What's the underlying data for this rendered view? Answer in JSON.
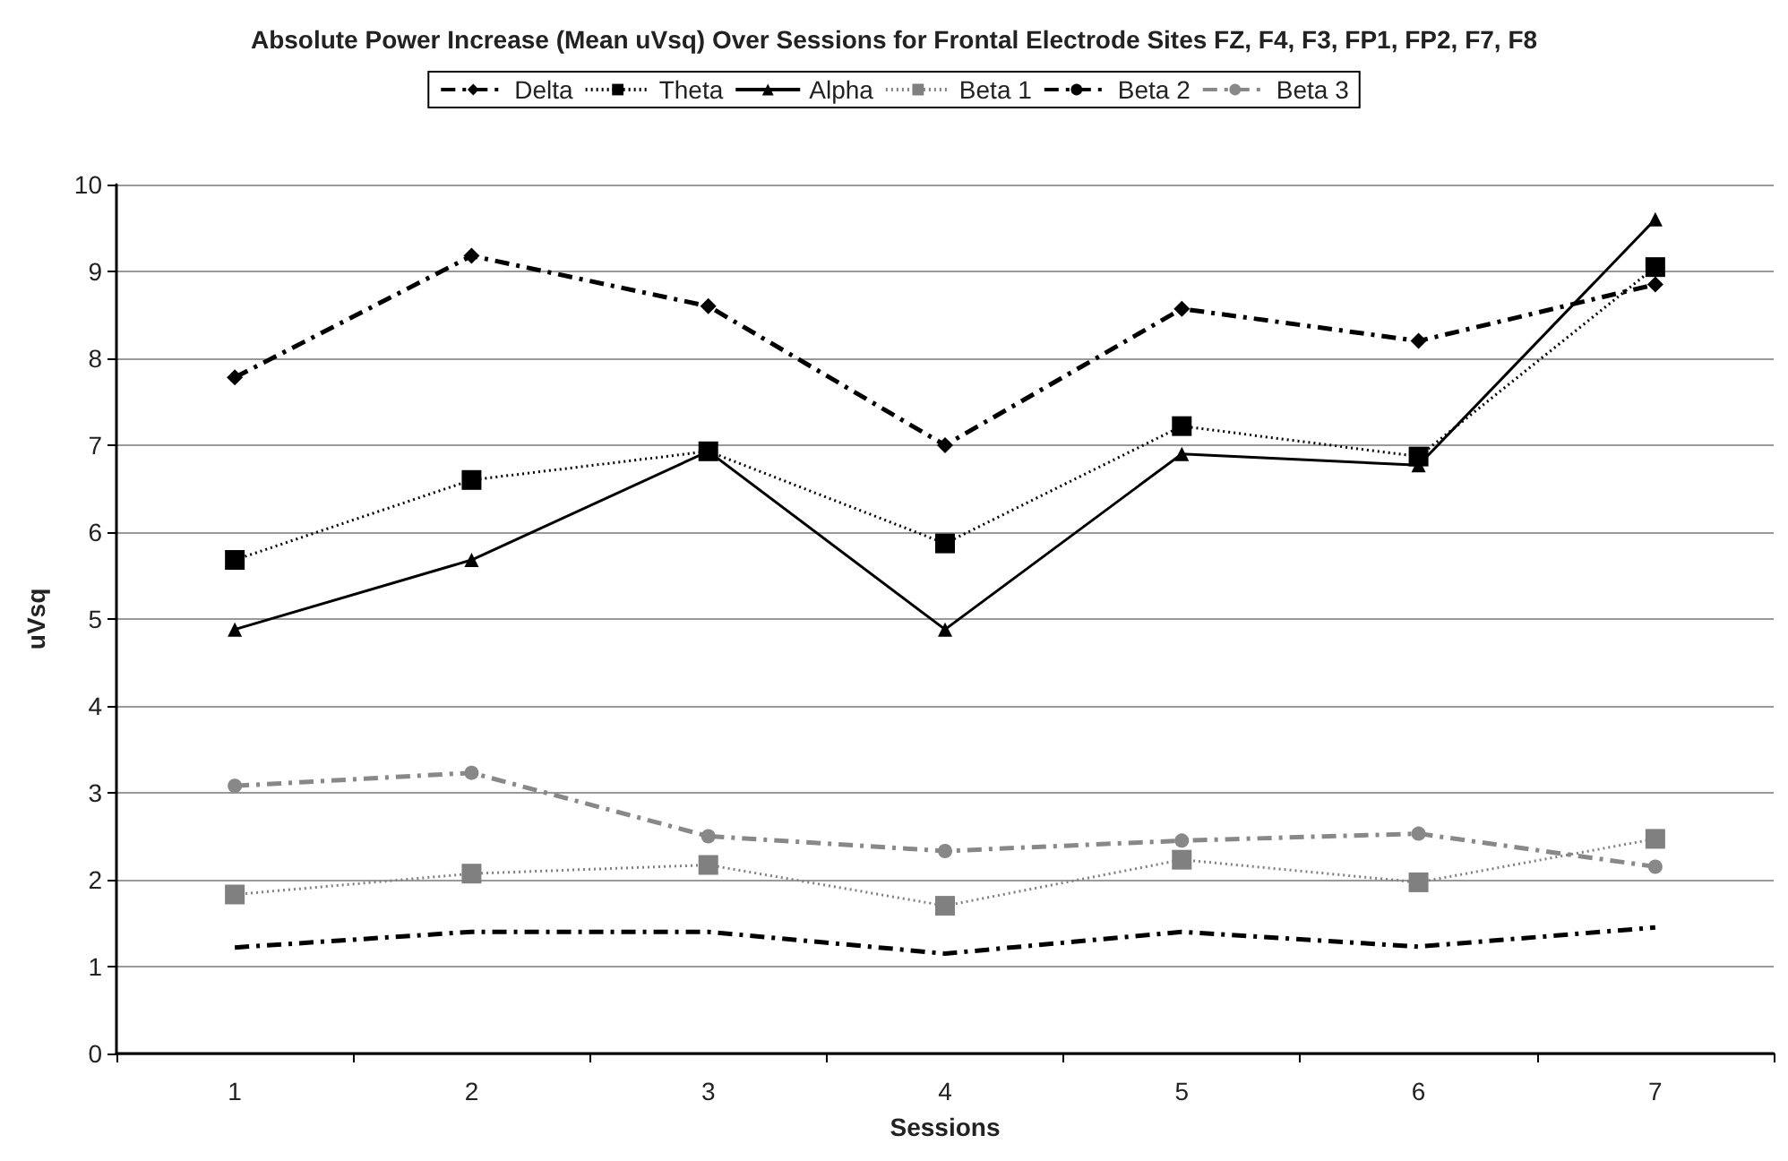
{
  "chart_data": {
    "type": "line",
    "title": "Absolute Power Increase (Mean uVsq) Over Sessions for Frontal Electrode Sites FZ, F4, F3, FP1, FP2, F7, F8",
    "xlabel": "Sessions",
    "ylabel": "uVsq",
    "categories": [
      "1",
      "2",
      "3",
      "4",
      "5",
      "6",
      "7"
    ],
    "series": [
      {
        "name": "Delta",
        "color": "#000000",
        "marker": "diamond",
        "line_style": "dashed",
        "values": [
          7.78,
          9.18,
          8.6,
          7.0,
          8.57,
          8.2,
          8.85
        ]
      },
      {
        "name": "Theta",
        "color": "#000000",
        "marker": "square",
        "line_style": "dotted",
        "values": [
          5.68,
          6.6,
          6.93,
          5.87,
          7.22,
          6.87,
          9.05
        ]
      },
      {
        "name": "Alpha",
        "color": "#000000",
        "marker": "triangle",
        "line_style": "solid",
        "values": [
          4.88,
          5.68,
          6.93,
          4.88,
          6.9,
          6.77,
          9.6
        ]
      },
      {
        "name": "Beta 1",
        "color": "#808080",
        "marker": "square",
        "line_style": "dotted",
        "values": [
          1.83,
          2.07,
          2.17,
          1.7,
          2.23,
          1.97,
          2.47
        ]
      },
      {
        "name": "Beta 2",
        "color": "#000000",
        "marker": "none",
        "line_style": "dashed",
        "values": [
          1.22,
          1.4,
          1.4,
          1.15,
          1.4,
          1.23,
          1.45
        ]
      },
      {
        "name": "Beta 3",
        "color": "#888888",
        "marker": "circle",
        "line_style": "dashed",
        "values": [
          3.08,
          3.23,
          2.5,
          2.33,
          2.45,
          2.53,
          2.15
        ]
      }
    ],
    "ylim": [
      0,
      10
    ],
    "yticks": [
      0,
      1,
      2,
      3,
      4,
      5,
      6,
      7,
      8,
      9,
      10
    ],
    "grid": "y",
    "legend": "top"
  }
}
